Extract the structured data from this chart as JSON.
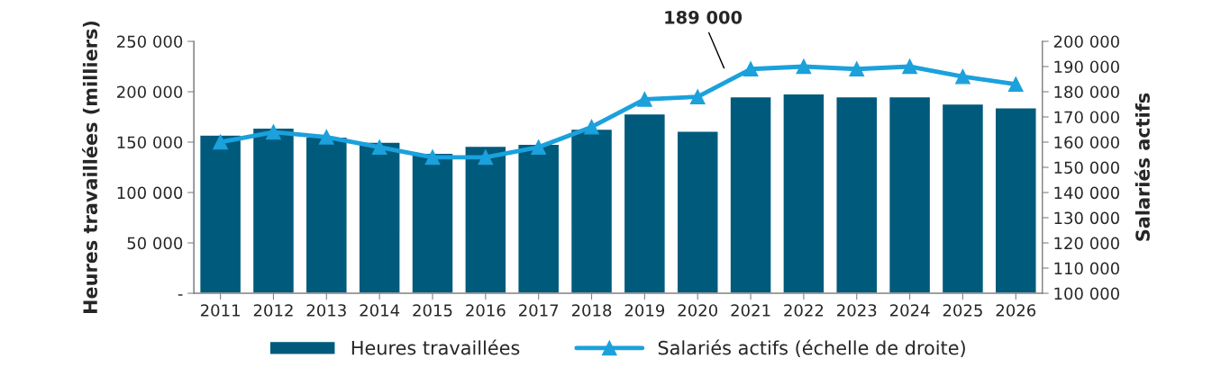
{
  "chart_data": {
    "type": "bar",
    "xlabel": null,
    "ylabel": "Heures travaillées (milliers)",
    "y2label": "Salariés actifs",
    "categories": [
      "2011",
      "2012",
      "2013",
      "2014",
      "2015",
      "2016",
      "2017",
      "2018",
      "2019",
      "2020",
      "2021",
      "2022",
      "2023",
      "2024",
      "2025",
      "2026"
    ],
    "series": [
      {
        "name": "Heures travaillées",
        "color": "#005a7c",
        "values": [
          157000,
          164000,
          155000,
          150000,
          139000,
          146000,
          148000,
          163000,
          178000,
          161000,
          195000,
          198000,
          195000,
          195000,
          188000,
          184000
        ]
      },
      {
        "name": "Salariés actifs (échelle de droite)",
        "type": "line",
        "axis": "y2",
        "color": "#1ba1dc",
        "marker": "triangle",
        "line_style": "solid",
        "values": [
          160000,
          164000,
          162000,
          158000,
          154000,
          154000,
          158000,
          166000,
          177000,
          178000,
          189000,
          190000,
          189000,
          190000,
          186000,
          183000
        ]
      }
    ],
    "ylim": [
      0,
      250000
    ],
    "yticks": [
      {
        "value": 0,
        "label": "-"
      },
      {
        "value": 50000,
        "label": "50 000"
      },
      {
        "value": 100000,
        "label": "100 000"
      },
      {
        "value": 150000,
        "label": "150 000"
      },
      {
        "value": 200000,
        "label": "200 000"
      },
      {
        "value": 250000,
        "label": "250 000"
      }
    ],
    "y2lim": [
      100000,
      200000
    ],
    "y2ticks": [
      {
        "value": 100000,
        "label": "100 000"
      },
      {
        "value": 110000,
        "label": "110 000"
      },
      {
        "value": 120000,
        "label": "120 000"
      },
      {
        "value": 130000,
        "label": "130 000"
      },
      {
        "value": 140000,
        "label": "140 000"
      },
      {
        "value": 150000,
        "label": "150 000"
      },
      {
        "value": 160000,
        "label": "160 000"
      },
      {
        "value": 170000,
        "label": "170 000"
      },
      {
        "value": 180000,
        "label": "180 000"
      },
      {
        "value": 190000,
        "label": "190 000"
      },
      {
        "value": 200000,
        "label": "200 000"
      }
    ],
    "annotations": [
      "189 000"
    ],
    "grid": false,
    "legend": "bottom"
  }
}
